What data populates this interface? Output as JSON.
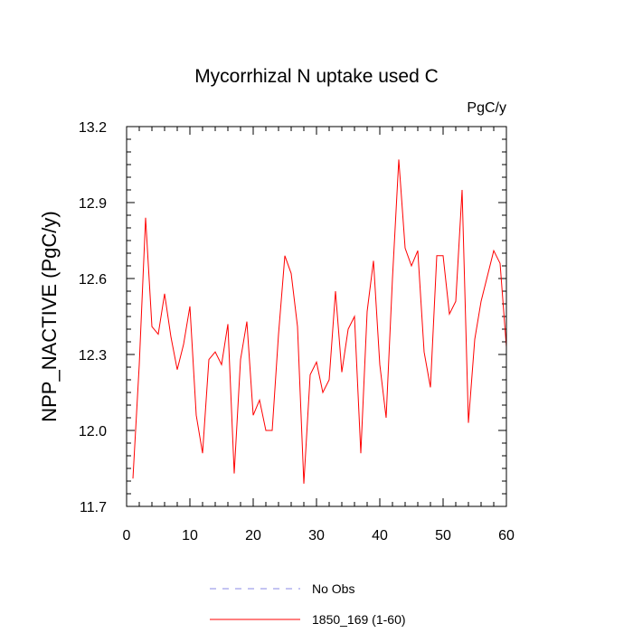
{
  "chart_data": {
    "type": "line",
    "title": "Mycorrhizal N uptake used C",
    "units": "PgC/y",
    "xlabel": "",
    "ylabel": "NPP_NACTIVE  (PgC/y)",
    "xlim": [
      0,
      60
    ],
    "ylim": [
      11.7,
      13.2
    ],
    "xticks": [
      0,
      10,
      20,
      30,
      40,
      50,
      60
    ],
    "xtick_labels": [
      "0",
      "10",
      "20",
      "30",
      "40",
      "50",
      "60"
    ],
    "xminor_step": 2,
    "yticks": [
      11.7,
      12.0,
      12.3,
      12.6,
      12.9,
      13.2
    ],
    "ytick_labels": [
      "11.7",
      "12.0",
      "12.3",
      "12.6",
      "12.9",
      "13.2"
    ],
    "yminor_step": 0.05,
    "series": [
      {
        "name": "1850_169 (1-60)",
        "color": "#ff0000",
        "style": "solid",
        "x": [
          1,
          2,
          3,
          4,
          5,
          6,
          7,
          8,
          9,
          10,
          11,
          12,
          13,
          14,
          15,
          16,
          17,
          18,
          19,
          20,
          21,
          22,
          23,
          24,
          25,
          26,
          27,
          28,
          29,
          30,
          31,
          32,
          33,
          34,
          35,
          36,
          37,
          38,
          39,
          40,
          41,
          42,
          43,
          44,
          45,
          46,
          47,
          48,
          49,
          50,
          51,
          52,
          53,
          54,
          55,
          56,
          57,
          58,
          59,
          60
        ],
        "values": [
          11.81,
          12.26,
          12.84,
          12.41,
          12.38,
          12.54,
          12.37,
          12.24,
          12.34,
          12.49,
          12.06,
          11.91,
          12.28,
          12.31,
          12.26,
          12.42,
          11.83,
          12.28,
          12.43,
          12.06,
          12.12,
          12.0,
          12.0,
          12.38,
          12.69,
          12.62,
          12.41,
          11.79,
          12.22,
          12.27,
          12.15,
          12.2,
          12.55,
          12.23,
          12.4,
          12.45,
          11.91,
          12.47,
          12.67,
          12.26,
          12.05,
          12.6,
          13.07,
          12.72,
          12.65,
          12.71,
          12.31,
          12.17,
          12.69,
          12.69,
          12.46,
          12.51,
          12.95,
          12.03,
          12.36,
          12.51,
          12.61,
          12.71,
          12.66,
          12.33
        ]
      }
    ],
    "legend": [
      {
        "label": "No Obs",
        "color": "#8a8ae6",
        "style": "dashed"
      },
      {
        "label": "1850_169 (1-60)",
        "color": "#ff0000",
        "style": "solid"
      }
    ],
    "legend_position": "bottom"
  }
}
